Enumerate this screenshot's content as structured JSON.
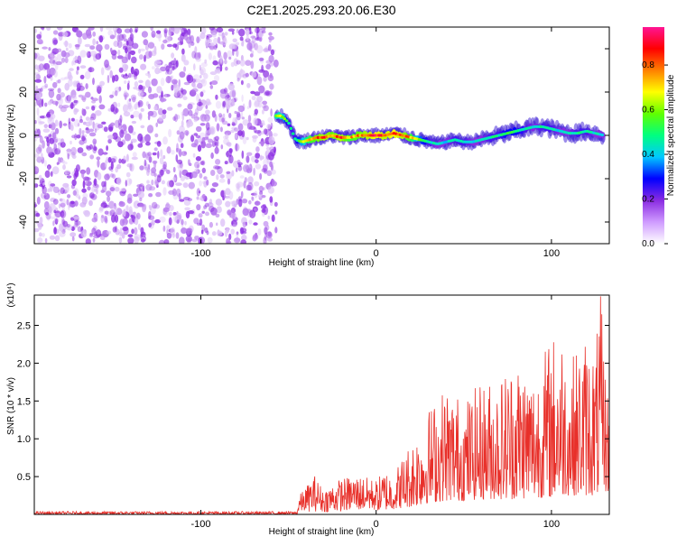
{
  "chart_data": [
    {
      "type": "heatmap",
      "title": "C2E1.2025.293.20.06.E30",
      "xlabel": "Height of straight line (km)",
      "ylabel": "Frequency (Hz)",
      "xlim": [
        -195,
        133
      ],
      "ylim": [
        -50,
        50
      ],
      "x_ticks": [
        -100,
        0,
        100
      ],
      "y_ticks": [
        -40,
        -20,
        0,
        20,
        40
      ],
      "colorbar": {
        "label": "Normalized spectral amplitude",
        "ticks": [
          0.0,
          0.2,
          0.4,
          0.6,
          0.8
        ],
        "range": [
          0.0,
          0.97
        ],
        "colors": [
          "#ffffff",
          "#cf9bff",
          "#8a2be2",
          "#0000ff",
          "#00c8ff",
          "#00ff80",
          "#60ff00",
          "#ffff00",
          "#ff8000",
          "#ff0000",
          "#ff1493"
        ]
      },
      "noise_region_x": [
        -195,
        -57
      ],
      "noise_color": "#8a2be2",
      "ridge": {
        "x": [
          -57,
          -54,
          -50,
          -46,
          -42,
          -38,
          -34,
          -30,
          -25,
          -20,
          -15,
          -10,
          -5,
          0,
          5,
          10,
          15,
          20,
          25,
          30,
          35,
          40,
          45,
          50,
          55,
          60,
          65,
          70,
          75,
          80,
          85,
          90,
          95,
          100,
          105,
          110,
          115,
          120,
          125,
          130
        ],
        "freq": [
          9,
          9,
          6,
          -2,
          -3,
          -2,
          -1,
          -1,
          0,
          -1,
          -1,
          0,
          0,
          0,
          0,
          1,
          0,
          -1,
          -2,
          -3,
          -4,
          -3,
          -2,
          -3,
          -3,
          -2,
          -1,
          0,
          1,
          2,
          3,
          4,
          4,
          3,
          2,
          1,
          1,
          2,
          1,
          0
        ],
        "amp": [
          0.7,
          0.7,
          0.5,
          0.5,
          0.65,
          0.8,
          0.85,
          0.9,
          0.85,
          0.9,
          0.8,
          0.85,
          0.9,
          0.95,
          0.9,
          0.95,
          0.9,
          0.8,
          0.6,
          0.5,
          0.45,
          0.45,
          0.5,
          0.5,
          0.45,
          0.45,
          0.5,
          0.5,
          0.55,
          0.55,
          0.5,
          0.45,
          0.5,
          0.5,
          0.45,
          0.45,
          0.5,
          0.5,
          0.45,
          0.45
        ]
      }
    },
    {
      "type": "line",
      "xlabel": "Height of straight line (km)",
      "ylabel": "SNR (10 * v/v)",
      "multiplier": "(x10⁴)",
      "xlim": [
        -195,
        133
      ],
      "ylim": [
        0,
        29000
      ],
      "x_ticks": [
        -100,
        0,
        100
      ],
      "y_ticks": [
        5000,
        10000,
        15000,
        20000,
        25000
      ],
      "y_tick_labels": [
        "0.5",
        "1.0",
        "1.5",
        "2.0",
        "2.5"
      ],
      "series": [
        {
          "color": "#e8302a",
          "envelope_x": [
            -195,
            -45,
            -44,
            -35,
            -30,
            -20,
            -10,
            0,
            5,
            10,
            20,
            30,
            40,
            50,
            60,
            70,
            80,
            90,
            100,
            105,
            110,
            120,
            125,
            128,
            133
          ],
          "envelope_max": [
            400,
            400,
            2500,
            5200,
            3300,
            4800,
            5200,
            4600,
            6100,
            5600,
            10000,
            14200,
            17500,
            15300,
            17600,
            18400,
            21500,
            19300,
            23800,
            25500,
            20500,
            24000,
            22400,
            29000,
            13600
          ],
          "envelope_min": [
            0,
            0,
            300,
            400,
            300,
            400,
            500,
            500,
            600,
            700,
            1000,
            1500,
            1800,
            1800,
            2000,
            2000,
            2000,
            2200,
            2200,
            2500,
            2500,
            2500,
            2500,
            3000,
            3000
          ]
        }
      ]
    }
  ]
}
